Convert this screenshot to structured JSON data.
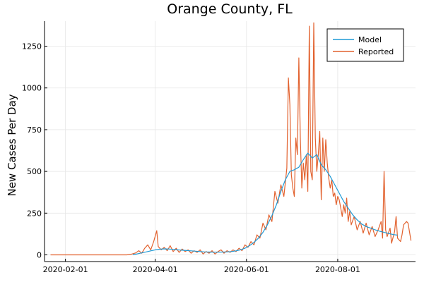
{
  "chart_data": {
    "type": "line",
    "title": "Orange County, FL",
    "xlabel": "",
    "ylabel": "New Cases Per Day",
    "x_ticks": [
      "2020-02-01",
      "2020-04-01",
      "2020-06-01",
      "2020-08-01"
    ],
    "y_ticks": [
      0,
      250,
      500,
      750,
      1000,
      1250
    ],
    "xlim": [
      "2020-01-18",
      "2020-09-22"
    ],
    "ylim": [
      -40,
      1400
    ],
    "grid": true,
    "legend_position": "top-right",
    "colors": {
      "Model": "#1f9ad6",
      "Reported": "#e2622f"
    },
    "series": [
      {
        "name": "Model",
        "points": [
          [
            "2020-03-17",
            2
          ],
          [
            "2020-03-20",
            6
          ],
          [
            "2020-03-23",
            12
          ],
          [
            "2020-03-26",
            18
          ],
          [
            "2020-03-29",
            24
          ],
          [
            "2020-04-01",
            30
          ],
          [
            "2020-04-04",
            34
          ],
          [
            "2020-04-07",
            36
          ],
          [
            "2020-04-10",
            35
          ],
          [
            "2020-04-13",
            33
          ],
          [
            "2020-04-16",
            30
          ],
          [
            "2020-04-19",
            28
          ],
          [
            "2020-04-22",
            26
          ],
          [
            "2020-04-25",
            24
          ],
          [
            "2020-04-28",
            22
          ],
          [
            "2020-05-01",
            20
          ],
          [
            "2020-05-04",
            18
          ],
          [
            "2020-05-07",
            17
          ],
          [
            "2020-05-10",
            16
          ],
          [
            "2020-05-13",
            16
          ],
          [
            "2020-05-16",
            17
          ],
          [
            "2020-05-19",
            18
          ],
          [
            "2020-05-22",
            20
          ],
          [
            "2020-05-25",
            24
          ],
          [
            "2020-05-28",
            30
          ],
          [
            "2020-05-31",
            40
          ],
          [
            "2020-06-03",
            55
          ],
          [
            "2020-06-06",
            75
          ],
          [
            "2020-06-09",
            100
          ],
          [
            "2020-06-12",
            135
          ],
          [
            "2020-06-15",
            180
          ],
          [
            "2020-06-18",
            235
          ],
          [
            "2020-06-21",
            300
          ],
          [
            "2020-06-24",
            380
          ],
          [
            "2020-06-27",
            450
          ],
          [
            "2020-06-30",
            500
          ],
          [
            "2020-07-03",
            510
          ],
          [
            "2020-07-06",
            525
          ],
          [
            "2020-07-09",
            570
          ],
          [
            "2020-07-12",
            610
          ],
          [
            "2020-07-15",
            580
          ],
          [
            "2020-07-18",
            600
          ],
          [
            "2020-07-21",
            540
          ],
          [
            "2020-07-24",
            510
          ],
          [
            "2020-07-27",
            470
          ],
          [
            "2020-07-30",
            420
          ],
          [
            "2020-08-02",
            370
          ],
          [
            "2020-08-05",
            320
          ],
          [
            "2020-08-08",
            280
          ],
          [
            "2020-08-11",
            240
          ],
          [
            "2020-08-14",
            210
          ],
          [
            "2020-08-17",
            185
          ],
          [
            "2020-08-20",
            170
          ],
          [
            "2020-08-23",
            160
          ],
          [
            "2020-08-26",
            150
          ],
          [
            "2020-08-29",
            142
          ],
          [
            "2020-09-01",
            135
          ],
          [
            "2020-09-04",
            128
          ],
          [
            "2020-09-07",
            122
          ],
          [
            "2020-09-10",
            118
          ]
        ]
      },
      {
        "name": "Reported",
        "points": [
          [
            "2020-01-22",
            0
          ],
          [
            "2020-02-10",
            0
          ],
          [
            "2020-03-01",
            0
          ],
          [
            "2020-03-13",
            0
          ],
          [
            "2020-03-16",
            4
          ],
          [
            "2020-03-19",
            12
          ],
          [
            "2020-03-21",
            25
          ],
          [
            "2020-03-23",
            10
          ],
          [
            "2020-03-25",
            40
          ],
          [
            "2020-03-27",
            60
          ],
          [
            "2020-03-29",
            30
          ],
          [
            "2020-03-31",
            80
          ],
          [
            "2020-04-02",
            145
          ],
          [
            "2020-04-03",
            50
          ],
          [
            "2020-04-05",
            30
          ],
          [
            "2020-04-07",
            45
          ],
          [
            "2020-04-09",
            25
          ],
          [
            "2020-04-11",
            55
          ],
          [
            "2020-04-13",
            20
          ],
          [
            "2020-04-15",
            40
          ],
          [
            "2020-04-17",
            15
          ],
          [
            "2020-04-19",
            35
          ],
          [
            "2020-04-21",
            20
          ],
          [
            "2020-04-23",
            30
          ],
          [
            "2020-04-25",
            10
          ],
          [
            "2020-04-27",
            25
          ],
          [
            "2020-04-29",
            15
          ],
          [
            "2020-05-01",
            30
          ],
          [
            "2020-05-03",
            5
          ],
          [
            "2020-05-05",
            20
          ],
          [
            "2020-05-07",
            10
          ],
          [
            "2020-05-09",
            25
          ],
          [
            "2020-05-11",
            5
          ],
          [
            "2020-05-13",
            20
          ],
          [
            "2020-05-15",
            30
          ],
          [
            "2020-05-17",
            10
          ],
          [
            "2020-05-19",
            25
          ],
          [
            "2020-05-21",
            15
          ],
          [
            "2020-05-23",
            30
          ],
          [
            "2020-05-25",
            20
          ],
          [
            "2020-05-27",
            40
          ],
          [
            "2020-05-29",
            25
          ],
          [
            "2020-05-31",
            60
          ],
          [
            "2020-06-02",
            45
          ],
          [
            "2020-06-04",
            80
          ],
          [
            "2020-06-06",
            60
          ],
          [
            "2020-06-08",
            120
          ],
          [
            "2020-06-10",
            100
          ],
          [
            "2020-06-12",
            190
          ],
          [
            "2020-06-14",
            150
          ],
          [
            "2020-06-16",
            240
          ],
          [
            "2020-06-18",
            200
          ],
          [
            "2020-06-20",
            380
          ],
          [
            "2020-06-22",
            310
          ],
          [
            "2020-06-24",
            420
          ],
          [
            "2020-06-26",
            350
          ],
          [
            "2020-06-28",
            520
          ],
          [
            "2020-06-29",
            1060
          ],
          [
            "2020-06-30",
            900
          ],
          [
            "2020-07-01",
            480
          ],
          [
            "2020-07-02",
            400
          ],
          [
            "2020-07-03",
            350
          ],
          [
            "2020-07-04",
            700
          ],
          [
            "2020-07-05",
            600
          ],
          [
            "2020-07-06",
            1180
          ],
          [
            "2020-07-07",
            700
          ],
          [
            "2020-07-08",
            400
          ],
          [
            "2020-07-09",
            550
          ],
          [
            "2020-07-10",
            450
          ],
          [
            "2020-07-11",
            600
          ],
          [
            "2020-07-12",
            380
          ],
          [
            "2020-07-13",
            1370
          ],
          [
            "2020-07-14",
            500
          ],
          [
            "2020-07-15",
            450
          ],
          [
            "2020-07-16",
            1390
          ],
          [
            "2020-07-17",
            700
          ],
          [
            "2020-07-18",
            500
          ],
          [
            "2020-07-19",
            600
          ],
          [
            "2020-07-20",
            740
          ],
          [
            "2020-07-21",
            330
          ],
          [
            "2020-07-22",
            700
          ],
          [
            "2020-07-23",
            500
          ],
          [
            "2020-07-24",
            690
          ],
          [
            "2020-07-25",
            550
          ],
          [
            "2020-07-26",
            460
          ],
          [
            "2020-07-27",
            400
          ],
          [
            "2020-07-28",
            450
          ],
          [
            "2020-07-29",
            350
          ],
          [
            "2020-07-30",
            370
          ],
          [
            "2020-07-31",
            300
          ],
          [
            "2020-08-01",
            350
          ],
          [
            "2020-08-02",
            330
          ],
          [
            "2020-08-03",
            280
          ],
          [
            "2020-08-04",
            230
          ],
          [
            "2020-08-05",
            300
          ],
          [
            "2020-08-06",
            250
          ],
          [
            "2020-08-07",
            340
          ],
          [
            "2020-08-08",
            200
          ],
          [
            "2020-08-09",
            260
          ],
          [
            "2020-08-10",
            180
          ],
          [
            "2020-08-12",
            230
          ],
          [
            "2020-08-14",
            150
          ],
          [
            "2020-08-16",
            200
          ],
          [
            "2020-08-18",
            130
          ],
          [
            "2020-08-20",
            190
          ],
          [
            "2020-08-22",
            120
          ],
          [
            "2020-08-24",
            170
          ],
          [
            "2020-08-26",
            110
          ],
          [
            "2020-08-28",
            150
          ],
          [
            "2020-08-30",
            200
          ],
          [
            "2020-08-31",
            100
          ],
          [
            "2020-09-01",
            500
          ],
          [
            "2020-09-02",
            150
          ],
          [
            "2020-09-03",
            110
          ],
          [
            "2020-09-05",
            160
          ],
          [
            "2020-09-06",
            70
          ],
          [
            "2020-09-08",
            140
          ],
          [
            "2020-09-09",
            230
          ],
          [
            "2020-09-10",
            100
          ],
          [
            "2020-09-12",
            80
          ],
          [
            "2020-09-13",
            120
          ],
          [
            "2020-09-14",
            180
          ],
          [
            "2020-09-16",
            200
          ],
          [
            "2020-09-17",
            190
          ],
          [
            "2020-09-19",
            85
          ]
        ]
      }
    ]
  }
}
